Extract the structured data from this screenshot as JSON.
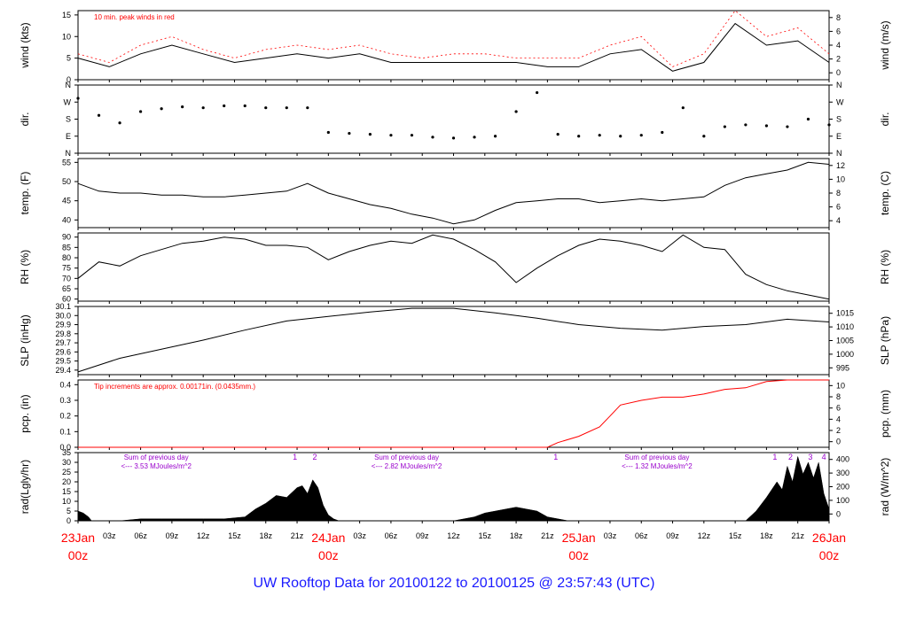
{
  "footer": {
    "title": "UW Rooftop Data for 20100122  to  20100125 @ 23:57:43  (UTC)"
  },
  "colors": {
    "axis": "#000000",
    "accent_red": "#ff0000",
    "purple": "#9900cc",
    "footer_blue": "#1a1aff"
  },
  "chart_data": [
    {
      "type": "line",
      "id": "wind",
      "ylabel": "wind (kts)",
      "ylabel_right": "wind (m/s)",
      "ylim": [
        0,
        16
      ],
      "yticks": [
        0,
        5,
        10,
        15
      ],
      "right_ylim": [
        0,
        8.23
      ],
      "right_yticks": [
        0,
        2,
        4,
        6,
        8
      ],
      "annotation": "10 min. peak winds in red",
      "series": [
        {
          "name": "",
          "x_hours": [
            0,
            3,
            6,
            9,
            12,
            15,
            18,
            21,
            24,
            27,
            30,
            33,
            36,
            39,
            42,
            45,
            48,
            51,
            54,
            57,
            60,
            63,
            66,
            69,
            72
          ],
          "values": [
            5,
            3,
            6,
            8,
            6,
            4,
            5,
            6,
            5,
            6,
            4,
            4,
            4,
            4,
            4,
            3,
            3,
            6,
            7,
            2,
            4,
            13,
            8,
            9,
            4
          ]
        },
        {
          "name": "",
          "x_hours": [
            0,
            3,
            6,
            9,
            12,
            15,
            18,
            21,
            24,
            27,
            30,
            33,
            36,
            39,
            42,
            45,
            48,
            51,
            54,
            57,
            60,
            63,
            66,
            69,
            72
          ],
          "values": [
            6,
            4,
            8,
            10,
            7,
            5,
            7,
            8,
            7,
            8,
            6,
            5,
            6,
            6,
            5,
            5,
            5,
            8,
            10,
            3,
            6,
            16,
            10,
            12,
            6
          ]
        }
      ]
    },
    {
      "type": "scatter",
      "id": "dir",
      "ylabel": "dir.",
      "ylabel_right": "dir.",
      "yticks_labels": [
        "N",
        "E",
        "S",
        "W",
        "N"
      ],
      "series": [
        {
          "name": "",
          "x_hours": [
            0,
            2,
            4,
            6,
            8,
            10,
            12,
            14,
            16,
            18,
            20,
            22,
            24,
            26,
            28,
            30,
            32,
            34,
            36,
            38,
            40,
            42,
            44,
            46,
            48,
            50,
            52,
            54,
            56,
            58,
            60,
            62,
            64,
            66,
            68,
            70,
            72
          ],
          "values": [
            290,
            200,
            160,
            220,
            235,
            245,
            240,
            250,
            250,
            240,
            240,
            240,
            110,
            105,
            100,
            95,
            95,
            85,
            80,
            85,
            90,
            220,
            320,
            100,
            90,
            95,
            90,
            95,
            110,
            240,
            90,
            140,
            150,
            145,
            140,
            180,
            150
          ]
        }
      ]
    },
    {
      "type": "line",
      "id": "temp",
      "ylabel": "temp. (F)",
      "ylabel_right": "temp. (C)",
      "ylim": [
        38,
        56
      ],
      "yticks": [
        40,
        45,
        50,
        55
      ],
      "right_yticks": [
        4,
        6,
        8,
        10,
        12
      ],
      "series": [
        {
          "name": "",
          "x_hours": [
            0,
            2,
            4,
            6,
            8,
            10,
            12,
            14,
            16,
            18,
            20,
            22,
            24,
            26,
            28,
            30,
            32,
            34,
            36,
            38,
            40,
            42,
            44,
            46,
            48,
            50,
            52,
            54,
            56,
            58,
            60,
            62,
            64,
            66,
            68,
            70,
            72
          ],
          "values": [
            49.5,
            47.5,
            47,
            47,
            46.5,
            46.5,
            46,
            46,
            46.5,
            47,
            47.5,
            49.5,
            47,
            45.5,
            44,
            43,
            41.5,
            40.5,
            39,
            40,
            42.5,
            44.5,
            45,
            45.5,
            45.5,
            44.5,
            45,
            45.5,
            45,
            45.5,
            46,
            49,
            51,
            52,
            53,
            55,
            54.5
          ]
        }
      ]
    },
    {
      "type": "line",
      "id": "rh",
      "ylabel": "RH (%)",
      "ylabel_right": "RH (%)",
      "ylim": [
        59,
        92
      ],
      "yticks": [
        60,
        65,
        70,
        75,
        80,
        85,
        90
      ],
      "series": [
        {
          "name": "",
          "x_hours": [
            0,
            2,
            4,
            6,
            8,
            10,
            12,
            14,
            16,
            18,
            20,
            22,
            24,
            26,
            28,
            30,
            32,
            34,
            36,
            38,
            40,
            42,
            44,
            46,
            48,
            50,
            52,
            54,
            56,
            58,
            60,
            62,
            64,
            66,
            68,
            70,
            72
          ],
          "values": [
            70,
            78,
            76,
            81,
            84,
            87,
            88,
            90,
            89,
            86,
            86,
            85,
            79,
            83,
            86,
            88,
            87,
            91,
            89,
            84,
            78,
            68,
            75,
            81,
            86,
            89,
            88,
            86,
            83,
            91,
            85,
            84,
            72,
            67,
            64,
            62,
            60
          ]
        }
      ]
    },
    {
      "type": "line",
      "id": "slp",
      "ylabel": "SLP (inHg)",
      "ylabel_right": "SLP (hPa)",
      "ylim": [
        29.35,
        30.1
      ],
      "yticks": [
        29.4,
        29.5,
        29.6,
        29.7,
        29.8,
        29.9,
        30.0,
        30.1
      ],
      "right_yticks": [
        995,
        1000,
        1005,
        1010,
        1015
      ],
      "series": [
        {
          "name": "",
          "x_hours": [
            0,
            4,
            8,
            12,
            16,
            20,
            24,
            28,
            32,
            36,
            40,
            44,
            48,
            52,
            56,
            60,
            64,
            68,
            72
          ],
          "values": [
            29.38,
            29.53,
            29.63,
            29.73,
            29.84,
            29.94,
            29.99,
            30.04,
            30.08,
            30.08,
            30.03,
            29.97,
            29.9,
            29.86,
            29.84,
            29.88,
            29.9,
            29.96,
            29.93
          ]
        }
      ]
    },
    {
      "type": "line",
      "id": "pcp",
      "ylabel": "pcp. (in)",
      "ylabel_right": "pcp. (mm)",
      "ylim": [
        0,
        0.43
      ],
      "yticks": [
        0.0,
        0.1,
        0.2,
        0.3,
        0.4
      ],
      "right_yticks": [
        0,
        2,
        4,
        6,
        8,
        10
      ],
      "annotation": "Tip increments are approx. 0.00171in. (0.0435mm.)",
      "series": [
        {
          "name": "",
          "x_hours": [
            0,
            45,
            46,
            48,
            50,
            51,
            52,
            54,
            56,
            58,
            60,
            62,
            64,
            66,
            68,
            72
          ],
          "values": [
            0,
            0,
            0.03,
            0.07,
            0.13,
            0.2,
            0.27,
            0.3,
            0.32,
            0.32,
            0.34,
            0.37,
            0.38,
            0.42,
            0.43,
            0.43
          ]
        }
      ]
    },
    {
      "type": "area",
      "id": "rad",
      "ylabel": "rad(Lgly/hr)",
      "ylabel_right": "rad (W/m^2)",
      "ylim": [
        0,
        35
      ],
      "yticks": [
        0,
        5,
        10,
        15,
        20,
        25,
        30,
        35
      ],
      "right_yticks": [
        0,
        100,
        200,
        300,
        400
      ],
      "annotations": [
        {
          "x_hours": 7.5,
          "text": "Sum of previous day"
        },
        {
          "x_hours": 7.5,
          "text": "<--- 3.53 MJoules/m^2"
        },
        {
          "x_hours": 31.5,
          "text": "Sum of previous day"
        },
        {
          "x_hours": 31.5,
          "text": "<--- 2.82 MJoules/m^2"
        },
        {
          "x_hours": 55.5,
          "text": "Sum of previous day"
        },
        {
          "x_hours": 55.5,
          "text": "<--- 1.32 MJoules/m^2"
        }
      ],
      "markers": [
        {
          "x_hours": 20.8,
          "text": "1"
        },
        {
          "x_hours": 22.7,
          "text": "2"
        },
        {
          "x_hours": 45.8,
          "text": "1"
        },
        {
          "x_hours": 66.8,
          "text": "1"
        },
        {
          "x_hours": 68.3,
          "text": "2"
        },
        {
          "x_hours": 70.2,
          "text": "3"
        },
        {
          "x_hours": 71.5,
          "text": "4"
        }
      ],
      "series": [
        {
          "name": "",
          "x_hours": [
            0,
            0.5,
            1,
            1.3,
            4,
            6,
            8,
            10,
            12,
            14,
            16,
            17,
            18,
            19,
            20,
            21,
            21.5,
            22,
            22.5,
            23,
            23.5,
            24,
            24.5,
            25,
            28,
            36,
            38,
            39,
            40,
            41,
            42,
            43,
            44,
            45,
            46,
            47,
            64,
            65,
            66,
            67,
            67.5,
            68,
            68.5,
            69,
            69.5,
            70,
            70.5,
            71,
            71.5,
            72
          ],
          "values": [
            5,
            4,
            2,
            0,
            0,
            1,
            1,
            1,
            1,
            1,
            2,
            6,
            9,
            13,
            12,
            17,
            18,
            14,
            21,
            17,
            8,
            3,
            1,
            0,
            0,
            0,
            2,
            4,
            5,
            6,
            7,
            6,
            5,
            2,
            1,
            0,
            0,
            5,
            12,
            20,
            16,
            28,
            20,
            33,
            24,
            30,
            22,
            30,
            14,
            6
          ]
        }
      ]
    }
  ],
  "xaxis": {
    "tick_labels": [
      {
        "h": 3,
        "text": "03z"
      },
      {
        "h": 6,
        "text": "06z"
      },
      {
        "h": 9,
        "text": "09z"
      },
      {
        "h": 12,
        "text": "12z"
      },
      {
        "h": 15,
        "text": "15z"
      },
      {
        "h": 18,
        "text": "18z"
      },
      {
        "h": 21,
        "text": "21z"
      },
      {
        "h": 27,
        "text": "03z"
      },
      {
        "h": 30,
        "text": "06z"
      },
      {
        "h": 33,
        "text": "09z"
      },
      {
        "h": 36,
        "text": "12z"
      },
      {
        "h": 39,
        "text": "15z"
      },
      {
        "h": 42,
        "text": "18z"
      },
      {
        "h": 45,
        "text": "21z"
      },
      {
        "h": 51,
        "text": "03z"
      },
      {
        "h": 54,
        "text": "06z"
      },
      {
        "h": 57,
        "text": "09z"
      },
      {
        "h": 60,
        "text": "12z"
      },
      {
        "h": 63,
        "text": "15z"
      },
      {
        "h": 66,
        "text": "18z"
      },
      {
        "h": 69,
        "text": "21z"
      }
    ],
    "day_labels": [
      {
        "h": 0,
        "line1": "23Jan",
        "line2": "00z"
      },
      {
        "h": 24,
        "line1": "24Jan",
        "line2": "00z"
      },
      {
        "h": 48,
        "line1": "25Jan",
        "line2": "00z"
      },
      {
        "h": 72,
        "line1": "26Jan",
        "line2": "00z"
      }
    ]
  }
}
